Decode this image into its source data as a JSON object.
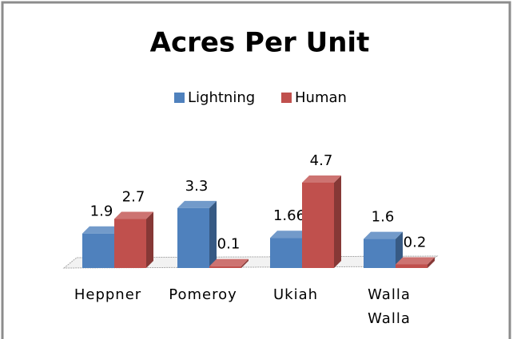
{
  "chart_data": {
    "type": "bar3d",
    "title": "Acres Per Unit",
    "categories": [
      "Heppner",
      "Pomeroy",
      "Ukiah",
      "Walla Walla"
    ],
    "series": [
      {
        "name": "Lightning",
        "color": "#4f81bd",
        "values": [
          1.9,
          3.3,
          1.66,
          1.6
        ]
      },
      {
        "name": "Human",
        "color": "#c0504d",
        "values": [
          2.7,
          0.1,
          4.7,
          0.2
        ]
      }
    ]
  }
}
